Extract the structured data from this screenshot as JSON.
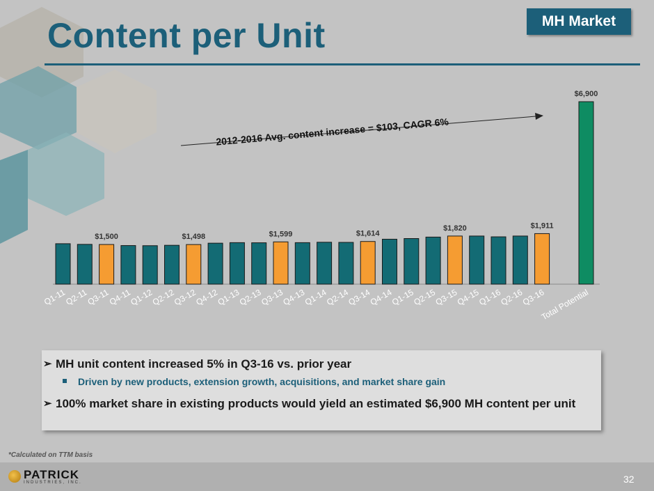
{
  "header": {
    "title": "Content per Unit",
    "tag": "MH Market"
  },
  "chart_data": {
    "type": "bar",
    "categories": [
      "Q1-11",
      "Q2-11",
      "Q3-11",
      "Q4-11",
      "Q1-12",
      "Q2-12",
      "Q3-12",
      "Q4-12",
      "Q1-13",
      "Q2-13",
      "Q3-13",
      "Q4-13",
      "Q1-14",
      "Q2-14",
      "Q3-14",
      "Q4-14",
      "Q1-15",
      "Q2-15",
      "Q3-15",
      "Q4-15",
      "Q1-16",
      "Q2-16",
      "Q3-16",
      "Total Potential"
    ],
    "values": [
      1530,
      1505,
      1500,
      1460,
      1455,
      1470,
      1498,
      1550,
      1570,
      1565,
      1599,
      1570,
      1585,
      1580,
      1614,
      1700,
      1725,
      1780,
      1820,
      1820,
      1790,
      1820,
      1911,
      6900
    ],
    "data_labels": [
      "",
      "",
      "$1,500",
      "",
      "",
      "",
      "$1,498",
      "",
      "",
      "",
      "$1,599",
      "",
      "",
      "",
      "$1,614",
      "",
      "",
      "",
      "$1,820",
      "",
      "",
      "",
      "$1,911",
      "$6,900"
    ],
    "colors": [
      "#136b74",
      "#136b74",
      "#f59c32",
      "#136b74",
      "#136b74",
      "#136b74",
      "#f59c32",
      "#136b74",
      "#136b74",
      "#136b74",
      "#f59c32",
      "#136b74",
      "#136b74",
      "#136b74",
      "#f59c32",
      "#136b74",
      "#136b74",
      "#136b74",
      "#f59c32",
      "#136b74",
      "#136b74",
      "#136b74",
      "#f59c32",
      "#0e8c62"
    ],
    "ylim": [
      0,
      7200
    ],
    "annotation": "2012-2016 Avg. content increase = $103, CAGR 6%"
  },
  "bullets": {
    "b1": "MH unit content increased 5% in Q3-16 vs. prior year",
    "b2": "Driven by new products, extension growth, acquisitions, and market share gain",
    "b3": "100% market share in existing products would yield an estimated $6,900 MH content per unit"
  },
  "footnote": "*Calculated on TTM basis",
  "footer": {
    "logo": "PATRICK",
    "logo_sub": "INDUSTRIES, INC.",
    "page": "32"
  }
}
